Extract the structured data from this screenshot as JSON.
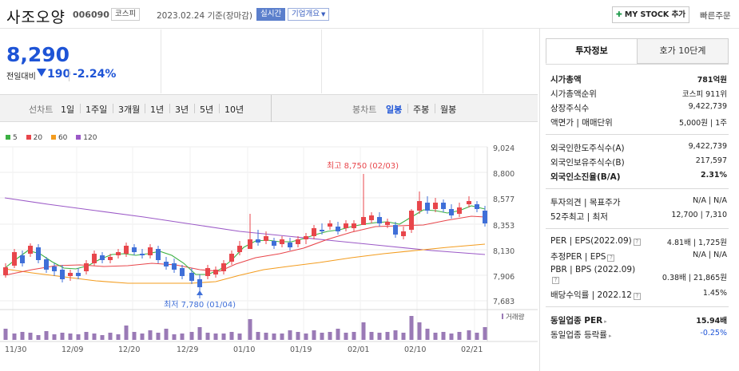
{
  "header": {
    "stock_name": "사조오양",
    "stock_code": "006090",
    "market": "코스피",
    "date_text": "2023.02.24 기준(장마감)",
    "realtime_label": "실시간",
    "company_info_label": "기업개요",
    "mystock_label": "MY STOCK 추가",
    "quick_order_label": "빠른주문"
  },
  "price": {
    "current": "8,290",
    "change_label": "전일대비",
    "change_value": "190",
    "change_direction": "down",
    "change_pct": "-2.24%",
    "color": "#1e54d6"
  },
  "period_tabs": {
    "line_label": "선차트",
    "line_items": [
      "1일",
      "1주일",
      "3개월",
      "1년",
      "3년",
      "5년",
      "10년"
    ],
    "candle_label": "봉차트",
    "candle_items": [
      "일봉",
      "주봉",
      "월봉"
    ],
    "active_candle": "일봉"
  },
  "legend": [
    {
      "label": "5",
      "color": "#3cb043"
    },
    {
      "label": "20",
      "color": "#e8464b"
    },
    {
      "label": "60",
      "color": "#f39c1e"
    },
    {
      "label": "120",
      "color": "#9b59c7"
    }
  ],
  "chart": {
    "y_ticks": [
      "9,024",
      "8,800",
      "8,577",
      "8,353",
      "8,130",
      "7,906",
      "7,683"
    ],
    "x_ticks": [
      "11/30",
      "12/09",
      "12/20",
      "12/29",
      "01/10",
      "01/19",
      "02/01",
      "02/10",
      "02/21"
    ],
    "high_label": "최고 8,750 (02/03)",
    "low_label": "최저 7,780 (01/04)",
    "volume_label": "거래량",
    "up_color": "#e8464b",
    "down_color": "#3f6fd8",
    "volume_color": "#9a7ab6"
  },
  "tabs": [
    {
      "label": "투자정보",
      "active": true
    },
    {
      "label": "호가 10단계",
      "active": false
    }
  ],
  "info_rows": [
    {
      "key": "시가총액",
      "value": "781억원",
      "bold": true
    },
    {
      "key": "시가총액순위",
      "value": "코스피 911위"
    },
    {
      "key": "상장주식수",
      "value": "9,422,739"
    },
    {
      "key": "액면가 | 매매단위",
      "value": "5,000원 | 1주"
    },
    {
      "key": "외국인한도주식수(A)",
      "value": "9,422,739"
    },
    {
      "key": "외국인보유주식수(B)",
      "value": "217,597"
    },
    {
      "key": "외국인소진율(B/A)",
      "value": "2.31%",
      "bold": true
    },
    {
      "key": "투자의견 | 목표주가",
      "value": "N/A | N/A"
    },
    {
      "key": "52주최고 | 최저",
      "value": "12,700 | 7,310"
    },
    {
      "key": "PER | EPS(2022.09)",
      "value": "4.81배 | 1,725원"
    },
    {
      "key": "추정PER | EPS",
      "value": "N/A | N/A"
    },
    {
      "key": "PBR | BPS (2022.09)",
      "value": "0.38배 | 21,865원"
    },
    {
      "key": "배당수익률 | 2022.12",
      "value": "1.45%"
    },
    {
      "key": "동일업종 PER",
      "value": "15.94배",
      "bold": true
    },
    {
      "key": "동일업종 등락률",
      "value": "-0.25%",
      "blue": true
    }
  ]
}
